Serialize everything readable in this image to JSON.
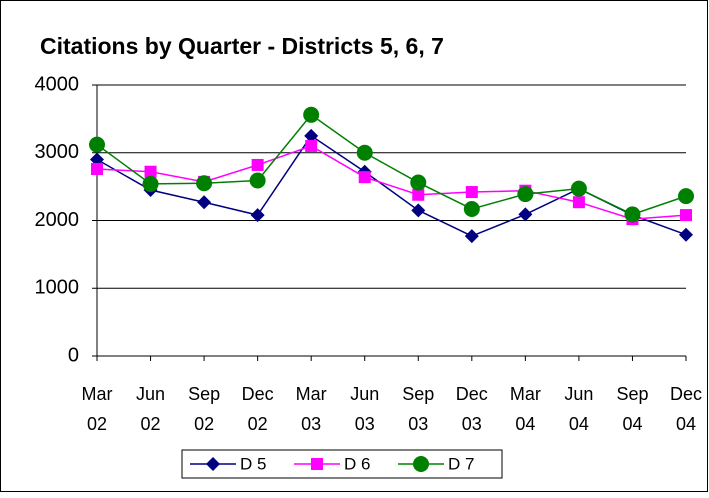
{
  "chart_data": {
    "type": "line",
    "title": "Citations by Quarter - Districts 5, 6, 7",
    "categories": [
      "Mar 02",
      "Jun 02",
      "Sep 02",
      "Dec 02",
      "Mar 03",
      "Jun 03",
      "Sep 03",
      "Dec 03",
      "Mar 04",
      "Jun 04",
      "Sep 04",
      "Dec 04"
    ],
    "series": [
      {
        "name": "D 5",
        "color": "#000080",
        "marker": "diamond",
        "values": [
          2900,
          2450,
          2270,
          2080,
          3250,
          2720,
          2150,
          1770,
          2090,
          2470,
          2080,
          1790
        ]
      },
      {
        "name": "D 6",
        "color": "#ff00ff",
        "marker": "square",
        "values": [
          2760,
          2720,
          2570,
          2820,
          3100,
          2640,
          2380,
          2420,
          2440,
          2270,
          2020,
          2080
        ]
      },
      {
        "name": "D 7",
        "color": "#008000",
        "marker": "circle",
        "values": [
          3120,
          2540,
          2550,
          2590,
          3560,
          3000,
          2560,
          2170,
          2390,
          2470,
          2090,
          2360
        ]
      }
    ],
    "ylim": [
      0,
      4000
    ],
    "yticks": [
      0,
      1000,
      2000,
      3000,
      4000
    ],
    "grid": true,
    "legend": "bottom"
  }
}
